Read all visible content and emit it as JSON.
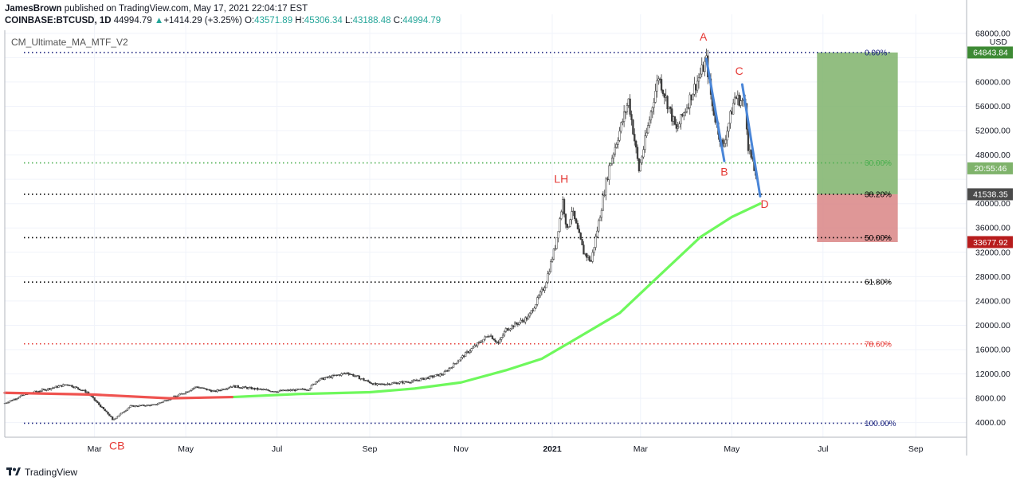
{
  "header": {
    "author": "JamesBrown",
    "published_text": "published on TradingView.com, May 17, 2021 22:04:17 EST",
    "symbol": "COINBASE:BTCUSD, 1D",
    "last": "44994.79",
    "change": "+1414.29 (+3.25%)",
    "o_label": "O:",
    "o": "43571.89",
    "h_label": "H:",
    "h": "45306.34",
    "l_label": "L:",
    "l": "43188.48",
    "c_label": "C:",
    "c": "44994.79"
  },
  "indicator_label": "CM_Ultimate_MA_MTF_V2",
  "footer": {
    "brand": "TradingView"
  },
  "colors": {
    "up": "#26a69a",
    "down": "#ef5350",
    "ma_green": "#6ef85c",
    "ma_red": "#ef5350",
    "trend": "#4a86d8",
    "annot": "#e53935",
    "target_zone": "#7fb36b",
    "stop_zone": "#d98585"
  },
  "chart_data": {
    "type": "candlestick",
    "y_axis_label": "USD",
    "y_scale": "linear",
    "ylim": [
      1600,
      68500
    ],
    "y_ticks": [
      4000,
      8000,
      12000,
      16000,
      20000,
      24000,
      28000,
      32000,
      36000,
      40000,
      44000,
      48000,
      52000,
      56000,
      60000,
      64000,
      68000
    ],
    "y_tick_labels": [
      "4000.00",
      "8000.00",
      "12000.00",
      "16000.00",
      "20000.00",
      "24000.00",
      "28000.00",
      "32000.00",
      "36000.00",
      "40000.00",
      "",
      "48000.00",
      "52000.00",
      "56000.00",
      "60000.00",
      "",
      "68000.00"
    ],
    "x_ticks": [
      "2020-03-01",
      "2020-05-01",
      "2020-07-01",
      "2020-09-01",
      "2020-11-01",
      "2021-01-01",
      "2021-03-01",
      "2021-05-01",
      "2021-07-01",
      "2021-09-01"
    ],
    "x_tick_labels": [
      "Mar",
      "May",
      "Jul",
      "Sep",
      "Nov",
      "2021",
      "Mar",
      "May",
      "Jul",
      "Sep"
    ],
    "xlim": [
      "2020-01-01",
      "2021-10-05"
    ],
    "price_path": [
      [
        "2020-01-01",
        7200
      ],
      [
        "2020-01-15",
        8700
      ],
      [
        "2020-02-12",
        10300
      ],
      [
        "2020-02-25",
        9000
      ],
      [
        "2020-03-12",
        4900
      ],
      [
        "2020-03-13",
        4400
      ],
      [
        "2020-03-25",
        6700
      ],
      [
        "2020-04-10",
        6900
      ],
      [
        "2020-04-29",
        8800
      ],
      [
        "2020-05-08",
        9900
      ],
      [
        "2020-05-20",
        9100
      ],
      [
        "2020-06-01",
        10000
      ],
      [
        "2020-06-30",
        9150
      ],
      [
        "2020-07-22",
        9500
      ],
      [
        "2020-07-28",
        11000
      ],
      [
        "2020-08-17",
        12200
      ],
      [
        "2020-09-05",
        10200
      ],
      [
        "2020-09-30",
        10800
      ],
      [
        "2020-10-20",
        12000
      ],
      [
        "2020-11-05",
        15500
      ],
      [
        "2020-11-20",
        18500
      ],
      [
        "2020-11-26",
        17000
      ],
      [
        "2020-12-01",
        19300
      ],
      [
        "2020-12-16",
        21300
      ],
      [
        "2020-12-27",
        26500
      ],
      [
        "2021-01-03",
        33000
      ],
      [
        "2021-01-08",
        40500
      ],
      [
        "2021-01-11",
        35500
      ],
      [
        "2021-01-14",
        39000
      ],
      [
        "2021-01-22",
        32000
      ],
      [
        "2021-01-27",
        30500
      ],
      [
        "2021-02-08",
        46000
      ],
      [
        "2021-02-21",
        57000
      ],
      [
        "2021-02-28",
        45500
      ],
      [
        "2021-03-13",
        61000
      ],
      [
        "2021-03-25",
        52000
      ],
      [
        "2021-04-05",
        58500
      ],
      [
        "2021-04-14",
        63500
      ],
      [
        "2021-04-18",
        56000
      ],
      [
        "2021-04-25",
        49000
      ],
      [
        "2021-05-03",
        57500
      ],
      [
        "2021-05-10",
        56500
      ],
      [
        "2021-05-12",
        49500
      ],
      [
        "2021-05-16",
        45500
      ],
      [
        "2021-05-17",
        44995
      ]
    ],
    "ma_series": {
      "name": "CM_Ultimate_MA_MTF_V2",
      "points": [
        [
          "2020-01-01",
          8900
        ],
        [
          "2020-03-01",
          8600
        ],
        [
          "2020-04-20",
          8000
        ],
        [
          "2020-06-01",
          8200
        ],
        [
          "2020-07-15",
          8700
        ],
        [
          "2020-09-01",
          9000
        ],
        [
          "2020-10-01",
          9600
        ],
        [
          "2020-11-01",
          10600
        ],
        [
          "2020-12-01",
          12600
        ],
        [
          "2020-12-25",
          14500
        ],
        [
          "2021-01-15",
          17500
        ],
        [
          "2021-02-15",
          22000
        ],
        [
          "2021-03-15",
          28500
        ],
        [
          "2021-04-10",
          34500
        ],
        [
          "2021-05-01",
          37800
        ],
        [
          "2021-05-20",
          40000
        ]
      ],
      "red_until": "2020-04-25"
    },
    "fibonacci": [
      {
        "level": "0.00%",
        "price": 64843.84,
        "color": "#1a237e"
      },
      {
        "level": "30.00%",
        "price": 46700,
        "color": "#4caf50"
      },
      {
        "level": "38.20%",
        "price": 41538.35,
        "color": "#000000"
      },
      {
        "level": "50.00%",
        "price": 34400,
        "color": "#000000"
      },
      {
        "level": "61.80%",
        "price": 27100,
        "color": "#000000"
      },
      {
        "level": "78.60%",
        "price": 16950,
        "color": "#e53935"
      },
      {
        "level": "100.00%",
        "price": 3900,
        "color": "#1a237e"
      }
    ],
    "trend_lines": [
      {
        "from": [
          "2021-04-14",
          63800
        ],
        "to": [
          "2021-04-26",
          47000
        ]
      },
      {
        "from": [
          "2021-05-08",
          59600
        ],
        "to": [
          "2021-05-20",
          41200
        ]
      }
    ],
    "annotations": [
      {
        "text": "A",
        "date": "2021-04-12",
        "price": 66800
      },
      {
        "text": "B",
        "date": "2021-04-26",
        "price": 44600
      },
      {
        "text": "C",
        "date": "2021-05-06",
        "price": 61200
      },
      {
        "text": "D",
        "date": "2021-05-23",
        "price": 39300
      },
      {
        "text": "LH",
        "date": "2021-01-07",
        "price": 43400
      },
      {
        "text": "CB",
        "date": "2020-03-16",
        "price": -400
      }
    ],
    "position": {
      "start": "2021-06-27",
      "end": "2021-08-20",
      "target": 64843.84,
      "entry": 41538.35,
      "stop": 33677.92
    },
    "price_labels": [
      {
        "text": "64843.84",
        "price": 64843.84,
        "bg": "#3d8a34"
      },
      {
        "text": "20:55:46",
        "price": 45800,
        "bg": "#7fb36b"
      },
      {
        "text": "41538.35",
        "price": 41538.35,
        "bg": "#4a4a4a"
      },
      {
        "text": "33677.92",
        "price": 33677.92,
        "bg": "#b71c1c"
      }
    ]
  }
}
